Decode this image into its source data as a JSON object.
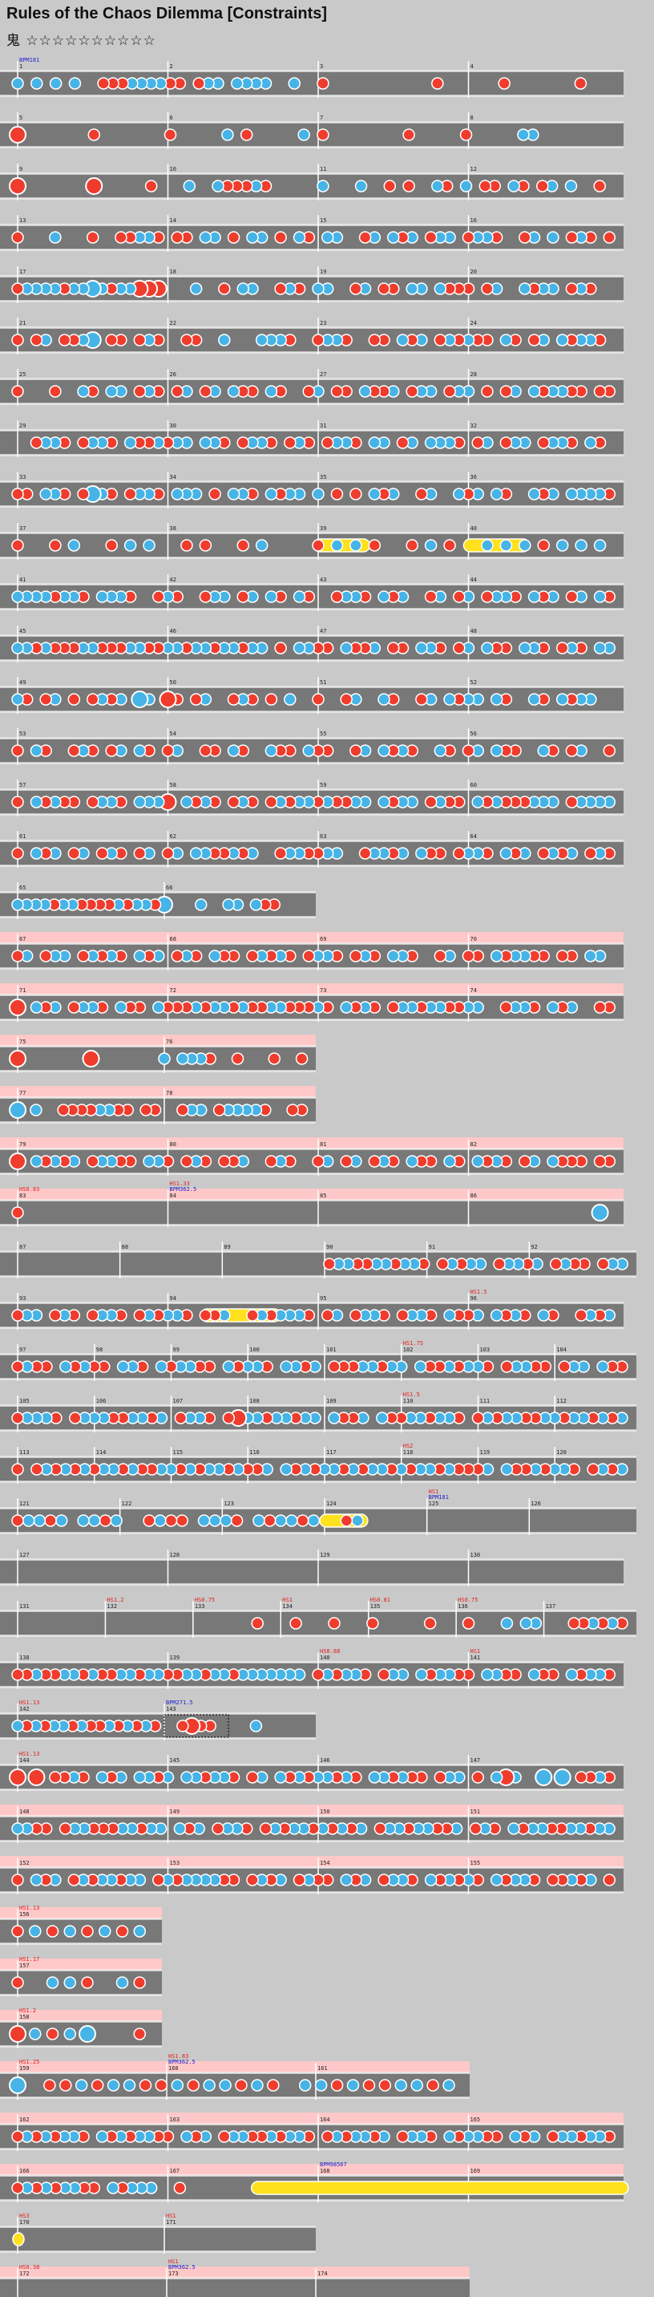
{
  "header": {
    "title": "Rules of the Chaos Dilemma [Constraints]",
    "difficulty_label": "鬼",
    "difficulty_stars": "☆☆☆☆☆☆☆☆☆☆"
  },
  "colors": {
    "background": "#c9c9c9",
    "lane": "#787878",
    "lane_gogo": "#ffc8c8",
    "don": "#f03c2d",
    "ka": "#46b4e6",
    "roll": "#ffe11e",
    "bpm_text": "#1e1ecc",
    "hs_text": "#e11e1e"
  },
  "chart_data": {
    "type": "taiko-chart",
    "rows": [
      {
        "bars": [
          1,
          2,
          3,
          4
        ],
        "marks": [
          "BPM181",
          "",
          "",
          ""
        ],
        "notes": "k.k.k.k..dddkkkkdd.dkk.kkkk..k..d...........d......d.......d...",
        "big": []
      },
      {
        "bars": [
          5,
          6,
          7,
          8
        ],
        "marks": [
          "",
          "",
          "",
          ""
        ],
        "notes": "d.......d.......d.....k.d.....k.d........d.....d.....kk........",
        "big": [
          0
        ]
      },
      {
        "bars": [
          9,
          10,
          11,
          12
        ],
        "marks": [
          "",
          "",
          "",
          ""
        ],
        "notes": "d.......d.....d...k..kdddkd.....k...k..d.d..kd.k.dd.kd.dk.k..d.",
        "big": [
          0,
          8
        ]
      },
      {
        "bars": [
          13,
          14,
          15,
          16
        ],
        "marks": [
          "",
          "",
          "",
          ""
        ],
        "notes": "d...k...d..ddkkd.dd.kk.d.kk.d.kd.kk..dk.kdk.dkk.dkkd..dk.k.dkd.d",
        "big": []
      },
      {
        "bars": [
          17,
          18,
          19,
          20
        ],
        "marks": [
          "",
          "",
          "",
          ""
        ],
        "notes": "dkkkkdkkkkdkkddd...k..d.kk..dkd.kk..dk.dd.kk.kddd.dk..kdkk.dkd..",
        "big": [
          8,
          13,
          14,
          15
        ]
      },
      {
        "bars": [
          21,
          22,
          23,
          24
        ],
        "marks": [
          "",
          "",
          "",
          ""
        ],
        "notes": "d.dk.ddkk.dd.dkd..dd..k...kkkd..dkkd..dd.kdk.dkdkdd.kd.dk.kdkkd.",
        "big": [
          8,
          9
        ]
      },
      {
        "bars": [
          25,
          26,
          27,
          28
        ],
        "marks": [
          "",
          "",
          "",
          ""
        ],
        "notes": "d...d..kd.kk.dkd.dk.dk.kdd.kd..dk.dd.kddk.dkk.dkk.d.dk.kdkkdd.dd",
        "big": []
      },
      {
        "bars": [
          29,
          30,
          31,
          32
        ],
        "marks": [
          "",
          "",
          "",
          ""
        ],
        "notes": "..dkkd.dkkd.kddkdkk.kkd.dkkd.dkd.dkkd.kk.dk.kkkd.dk.dkk.dkkd.kd.",
        "big": []
      },
      {
        "bars": [
          33,
          34,
          35,
          36
        ],
        "marks": [
          "",
          "",
          "",
          ""
        ],
        "notes": "dd.kkd.dkkd.dkkd.kkk.d.kkd.kdkk.k.d.d.kdk..dk..kdk.kd..kdk.kkkkd",
        "big": [
          8,
          16
        ]
      },
      {
        "bars": [
          37,
          38,
          39,
          40
        ],
        "marks": [
          "",
          "",
          "",
          ""
        ],
        "notes": "d.dk.dkk.dd.dk..dkkd.dkd.kkkdkkk",
        "big": [],
        "rolls": [
          [
            16,
            18.5
          ],
          [
            24,
            27
          ]
        ]
      },
      {
        "bars": [
          41,
          42,
          43,
          44
        ],
        "marks": [
          "",
          "",
          "",
          ""
        ],
        "notes": "kkkkdkkd.kkkd..dkd..dkk.dk.kd.kd..dkkd.kdk..dk.dk.dkkd.kdk.dk.kd",
        "big": []
      },
      {
        "bars": [
          45,
          46,
          47,
          48
        ],
        "marks": [
          "",
          "",
          "",
          ""
        ],
        "notes": "kkdkdddkkdddkkddkkdkkdkkdkk.d.kkdd.kddk.dd.kkd.dk.kdd.kkd.dkd.kk",
        "big": []
      },
      {
        "bars": [
          49,
          50,
          51,
          52
        ],
        "marks": [
          "",
          "",
          "",
          ""
        ],
        "notes": "kd.dk.d.dkdk.kk.dd.dk..dkd.d.k..d..dk..kd..dk.kdkk.kd..kd.kdkk..",
        "big": [
          13,
          16
        ]
      },
      {
        "bars": [
          53,
          54,
          55,
          56
        ],
        "marks": [
          "",
          "",
          "",
          ""
        ],
        "notes": "d.kd..dkd.dk.kd.dk..dd.kd..kdd.kdd..dk.kdkd..kd.dk.kdd..kd.dk..d",
        "big": []
      },
      {
        "bars": [
          57,
          58,
          59,
          60
        ],
        "marks": [
          "",
          "",
          "",
          ""
        ],
        "notes": "d.kdkdd.dkkd.kkkd.kdkd.dkd.dkdkkdkddkk.kdkk.dkdd.kdkdddkkk.dkkkk",
        "big": [
          16
        ]
      },
      {
        "bars": [
          61,
          62,
          63,
          64
        ],
        "marks": [
          "",
          "",
          "",
          ""
        ],
        "notes": "d.kdk.dk.dkd.dk.dk.kkddkdk..dkkddkk..dkkdk.kdd.dkkd.kdk.dkdk.dkd",
        "big": []
      },
      {
        "bars": [
          65,
          66
        ],
        "marks": [
          "",
          ""
        ],
        "notes": "kkkkdkkddddkdkkdk...k..kk.kdd...",
        "big": [
          16,
          18,
          21,
          22
        ]
      },
      {
        "bars": [
          67,
          68,
          69,
          70
        ],
        "marks": [
          "",
          "",
          "",
          ""
        ],
        "notes": "dk.dkk.dkdkd.kdk.dkd.kdd.dkdkd.dkkd.dkd.kkd..dk.dd.kdkkdd.dd.kk.",
        "big": [],
        "gogo": true
      },
      {
        "bars": [
          71,
          72,
          73,
          74
        ],
        "marks": [
          "",
          "",
          "",
          ""
        ],
        "notes": "d.kdk.dkkd.kdd.kdddkdkkdkddkkdddkd.kdkd.dkkdkkddkk..dkkd.kdk..dd",
        "big": [
          0
        ],
        "gogo": true
      },
      {
        "bars": [
          75,
          76
        ],
        "marks": [
          "",
          ""
        ],
        "notes": "d.......d.......k.kkkd..d...d..d",
        "big": [
          0,
          8
        ],
        "gogo": true
      },
      {
        "bars": [
          77,
          78
        ],
        "marks": [
          "",
          ""
        ],
        "notes": "k.k..ddddkkdd.dd..dkk.dkkkkd..dd",
        "big": [
          0,
          4
        ],
        "gogo": true
      },
      {
        "bars": [
          79,
          80,
          81,
          82
        ],
        "marks": [
          "",
          "",
          "",
          ""
        ],
        "notes": "d.kdkdk.dkkdd.kkd.dkd.ddk..dkd..dk.dk.dkd.kdd.kd.kdkd.dk.kddd.dd",
        "big": [
          0
        ],
        "gogo": true
      },
      {
        "bars": [
          83,
          84,
          85,
          86
        ],
        "marks": [
          "HS0.83",
          "HS1.33 BPM362.5",
          "",
          ""
        ],
        "notes": "d..............................k",
        "big": [
          31
        ],
        "gogo": true,
        "beats": [
          1,
          1,
          1,
          1
        ]
      },
      {
        "bars": [
          87,
          88,
          89,
          90,
          91,
          92
        ],
        "marks": [
          "",
          "",
          "",
          "",
          "",
          ""
        ],
        "notes": ".................................dkkddkkdkkd.dkdkk.dkkdk.dkdd.dkk",
        "big": []
      },
      {
        "bars": [
          93,
          94,
          95,
          96
        ],
        "marks": [
          "",
          "",
          "",
          "HS1.5"
        ],
        "notes": "dkk.dkd.dkkd.dkdkkd.ddk..dkdkkkd.dk.dkkd.dkkd.kddk.kdkd.kd..dkdk",
        "big": [],
        "rolls": [
          [
            20,
            27.5
          ]
        ]
      },
      {
        "bars": [
          97,
          98,
          99,
          100,
          101,
          102,
          103,
          104
        ],
        "marks": [
          "",
          "",
          "",
          "",
          "",
          "HS1.75",
          "",
          ""
        ],
        "notes": "dkdd.kdkdd.kkd.kdkkdd.kdkkd.kkdk.dddkkdkk.kddkdkkd.dkkdd.dkk.kdd",
        "big": []
      },
      {
        "bars": [
          105,
          106,
          107,
          108,
          109,
          110,
          111,
          112
        ],
        "marks": [
          "",
          "",
          "",
          "",
          "",
          "HS1.5",
          "",
          ""
        ],
        "notes": "dkkkd.dkkkddkkdk.dkkd.ddkkdkkdkk.kddk.kddkkdkkd.dkdkkddkkdkkdkdk",
        "big": [
          23
        ]
      },
      {
        "bars": [
          113,
          114,
          115,
          116,
          117,
          118,
          119,
          120
        ],
        "marks": [
          "",
          "",
          "",
          "",
          "",
          "HS2",
          "",
          ""
        ],
        "notes": "d.dkdkdkdkkdkddkkdkdkkdkddk.kdkdkkdkdkkdkdkkdkdddk.kddkdkkd.dkdk",
        "big": []
      },
      {
        "bars": [
          121,
          122,
          123,
          124,
          125,
          126
        ],
        "marks": [
          "",
          "",
          "",
          "",
          "HS1 BPM181",
          ""
        ],
        "notes": "dkkdk.kkdk..dkdd.kkkd.kdkkdk..dk........................",
        "big": [],
        "rolls": [
          [
            28,
            31.5
          ]
        ]
      },
      {
        "bars": [
          127,
          128,
          129,
          130
        ],
        "marks": [
          "",
          "",
          "",
          ""
        ],
        "notes": "",
        "big": []
      },
      {
        "bars": [
          131,
          132,
          133,
          134,
          135,
          136,
          137
        ],
        "marks": [
          "",
          "HS1.2",
          "HS0.75",
          "HS1",
          "HS0.81",
          "HS0.75",
          ""
        ],
        "notes": ".........................d...d...d...d.....d...d...k.kk...ddkdkd",
        "big": []
      },
      {
        "bars": [
          138,
          139,
          140,
          141
        ],
        "marks": [
          "",
          "",
          "HS0.88",
          "HS1"
        ],
        "notes": "ddkddkkdkddkkdkkddkkdkkdkkkkkkk.dkdkkd.dkk.kdkkdd.kkdd.kdd.kdkkd",
        "big": []
      },
      {
        "bars": [
          142,
          143
        ],
        "marks": [
          "HS1.13",
          "BPM271.5"
        ],
        "notes": "kdkdkkdkddkdkdkd..dddd....k.....",
        "big": [
          16,
          17,
          19
        ],
        "connector": [
          16,
          23
        ]
      },
      {
        "bars": [
          144,
          145,
          146,
          147
        ],
        "marks": [
          "HS1.13",
          "",
          "",
          ""
        ],
        "notes": "d.d.ddkd.kdk.kkdk.kkdkkd.dk.kdkdkkdkd.kkdkdd.dkk.d.kdk..k.k.ddkd",
        "big": [
          0,
          2,
          52,
          54,
          56,
          58
        ]
      },
      {
        "bars": [
          148,
          149,
          150,
          151
        ],
        "marks": [
          "",
          "",
          "",
          ""
        ],
        "notes": "kkdd.dkkdddkkdkk.kdk.dkkd.dkdkkdkdkdk.dkkdkkddk.dkd.kdkkddkkdkk",
        "big": [],
        "gogo": true
      },
      {
        "bars": [
          152,
          153,
          154,
          155
        ],
        "marks": [
          "",
          "",
          "",
          ""
        ],
        "notes": "d.kdk.dkdkkdkk.dkdkkkkdd.dkdk.dkdd.kdk.dkkd.kdkdkd.kdkkd.ddkdk.d",
        "big": [],
        "gogo": true
      },
      {
        "bars": [
          156
        ],
        "marks": [
          "HS1.13"
        ],
        "notes": "dkdkdkdk",
        "big": [],
        "gogo": true
      },
      {
        "bars": [
          157
        ],
        "marks": [
          "HS1.17"
        ],
        "notes": "d.kkd.kd",
        "big": [],
        "gogo": true
      },
      {
        "bars": [
          158
        ],
        "marks": [
          "HS1.2"
        ],
        "notes": "dkdkk..d",
        "big": [
          0,
          4
        ],
        "gogo": true
      },
      {
        "bars": [
          159,
          160,
          161
        ],
        "marks": [
          "HS1.25",
          "HS1.83 BPM362.5",
          ""
        ],
        "notes": "k.ddkdkkddkdkkdkd.kkdkddkkdk",
        "big": [
          0
        ],
        "gogo": true
      },
      {
        "bars": [
          162,
          163,
          164,
          165
        ],
        "marks": [
          "",
          "",
          "",
          ""
        ],
        "notes": "dkdkdkkd.kdkdkkdd.kdk.dkkddkdkkd.dkdkkdk.dkkd.kdkkdd.kdk.dkkdkkd",
        "big": [],
        "gogo": true
      },
      {
        "bars": [
          166,
          167,
          168,
          169
        ],
        "marks": [
          "",
          "",
          "BPM98567",
          ""
        ],
        "notes": "dkdkdkkdd.kdkkk..d.............................................",
        "big": [
          18,
          24
        ],
        "gogo": true,
        "rolls": [
          [
            25,
            63.5
          ]
        ]
      },
      {
        "bars": [
          170,
          171
        ],
        "marks": [
          "HS3",
          "HS1"
        ],
        "notes": "",
        "big": [],
        "rolls": [
          [
            0,
            3
          ]
        ]
      },
      {
        "bars": [
          172,
          173,
          174
        ],
        "marks": [
          "HS0.38",
          "HS1 BPM362.5",
          ""
        ],
        "notes": "",
        "big": [],
        "gogo": true
      }
    ]
  }
}
